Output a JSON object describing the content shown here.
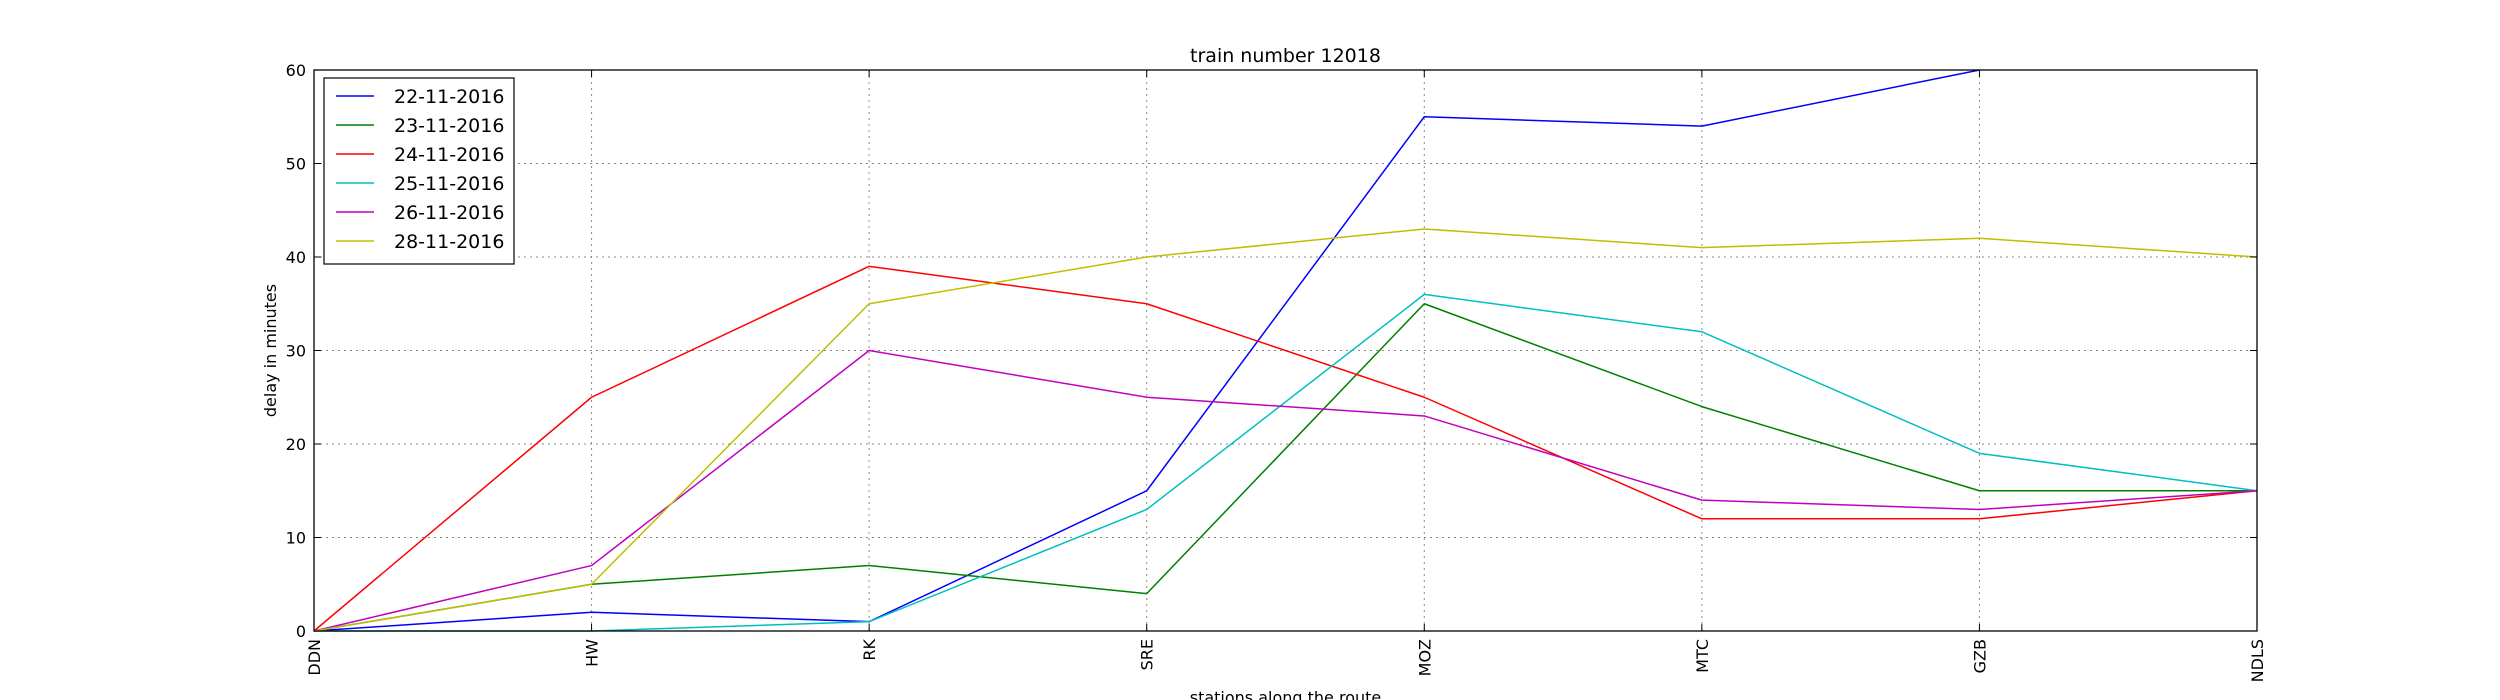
{
  "chart_data": {
    "type": "line",
    "title": "train number 12018",
    "xlabel": "stations along the route",
    "ylabel": "delay in minutes",
    "categories": [
      "DDN",
      "HW",
      "RK",
      "SRE",
      "MOZ",
      "MTC",
      "GZB",
      "NDLS"
    ],
    "ylim": [
      0,
      60
    ],
    "yticks": [
      0,
      10,
      20,
      30,
      40,
      50,
      60
    ],
    "grid": true,
    "legend_position": "top-left",
    "series": [
      {
        "name": "22-11-2016",
        "color": "#0000ff",
        "values": [
          0,
          2,
          1,
          15,
          55,
          54,
          60,
          null
        ]
      },
      {
        "name": "23-11-2016",
        "color": "#008000",
        "values": [
          0,
          5,
          7,
          4,
          35,
          24,
          15,
          15
        ]
      },
      {
        "name": "24-11-2016",
        "color": "#ff0000",
        "values": [
          0,
          25,
          39,
          35,
          25,
          12,
          12,
          15
        ]
      },
      {
        "name": "25-11-2016",
        "color": "#00bfbf",
        "values": [
          0,
          0,
          1,
          13,
          36,
          32,
          19,
          15
        ]
      },
      {
        "name": "26-11-2016",
        "color": "#bf00bf",
        "values": [
          0,
          7,
          30,
          25,
          23,
          14,
          13,
          15
        ]
      },
      {
        "name": "28-11-2016",
        "color": "#bfbf00",
        "values": [
          0,
          5,
          35,
          40,
          43,
          41,
          42,
          40
        ]
      }
    ]
  }
}
